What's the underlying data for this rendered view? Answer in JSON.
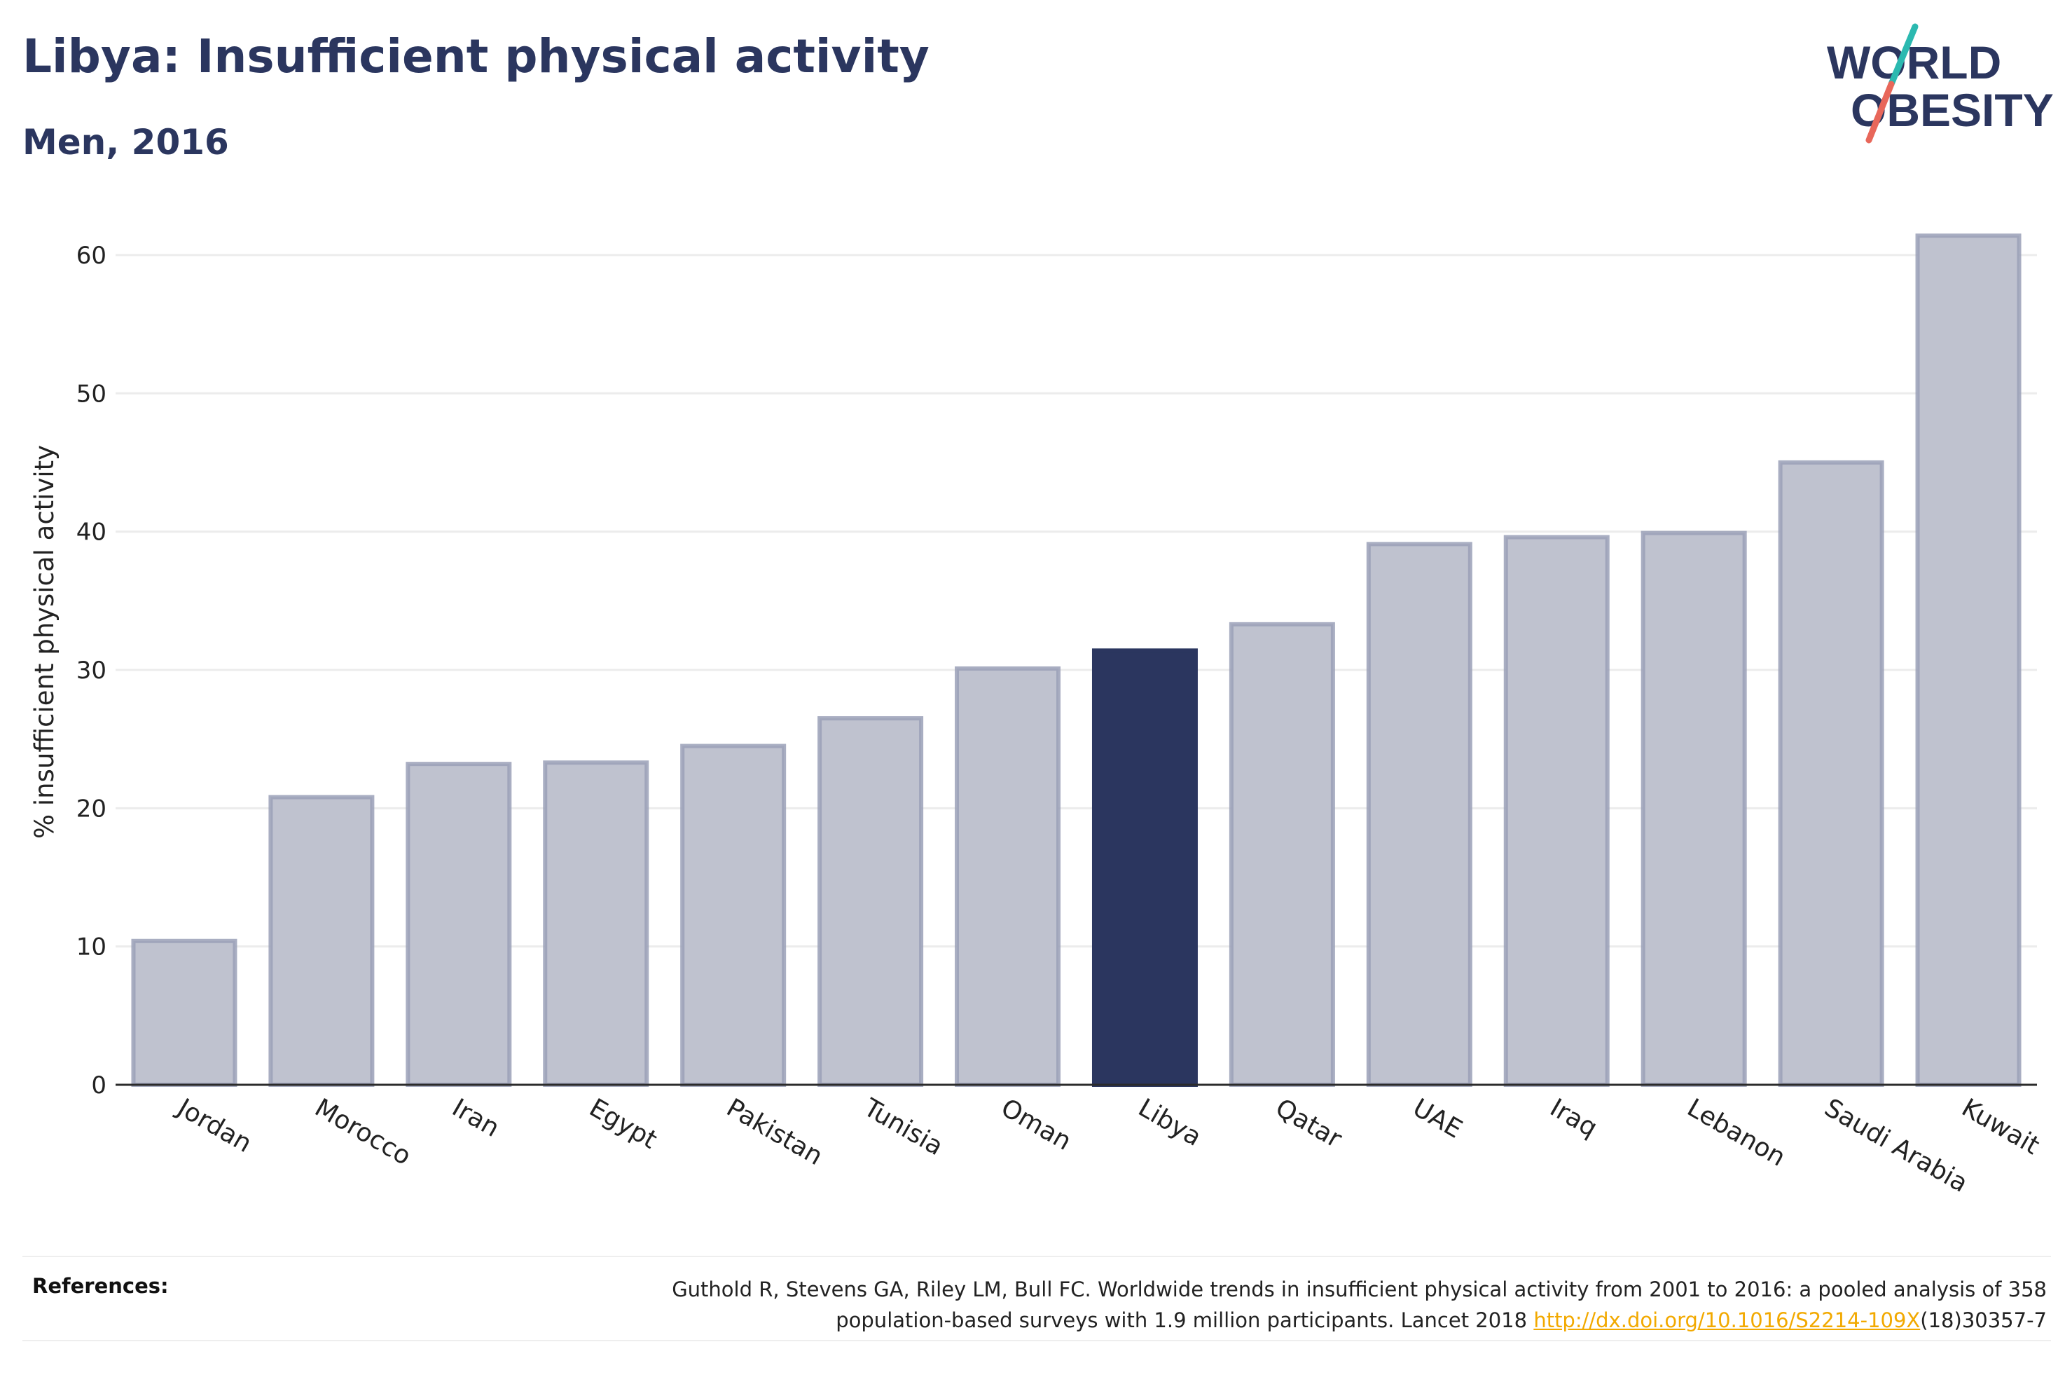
{
  "header": {
    "title": "Libya: Insufficient physical activity",
    "subtitle": "Men, 2016"
  },
  "logo": {
    "line1": "WORLD",
    "line2": "OBESITY",
    "accent_colors": [
      "#2bb9b0",
      "#e8675a"
    ],
    "text_color": "#2b365f"
  },
  "chart_data": {
    "type": "bar",
    "categories": [
      "Jordan",
      "Morocco",
      "Iran",
      "Egypt",
      "Pakistan",
      "Tunisia",
      "Oman",
      "Libya",
      "Qatar",
      "UAE",
      "Iraq",
      "Lebanon",
      "Saudi Arabia",
      "Kuwait"
    ],
    "values": [
      10.4,
      20.8,
      23.2,
      23.3,
      24.5,
      26.5,
      30.1,
      31.4,
      33.3,
      39.1,
      39.6,
      39.9,
      45.0,
      61.4
    ],
    "highlight": "Libya",
    "ylabel": "% insufficient physical activity",
    "ylim": [
      0,
      64
    ],
    "yticks": [
      "0",
      "10",
      "20",
      "30",
      "40",
      "50",
      "60"
    ],
    "grid": true,
    "colors": {
      "bar": "#bfc2cf",
      "bar_edge": "#9aa0b7",
      "highlight": "#2b365f",
      "axis": "#2b2b2b",
      "grid": "#ececec"
    }
  },
  "footer": {
    "references_label": "References:",
    "ref_line1": "Guthold R, Stevens GA, Riley LM, Bull FC. Worldwide trends in insufficient physical activity from 2001 to 2016: a pooled analysis of 358",
    "ref_line2_prefix": "population-based surveys with 1.9 million participants. Lancet 2018 ",
    "ref_link": "http://dx.doi.org/10.1016/S2214-109X",
    "ref_line2_suffix": "(18)30357-7"
  }
}
